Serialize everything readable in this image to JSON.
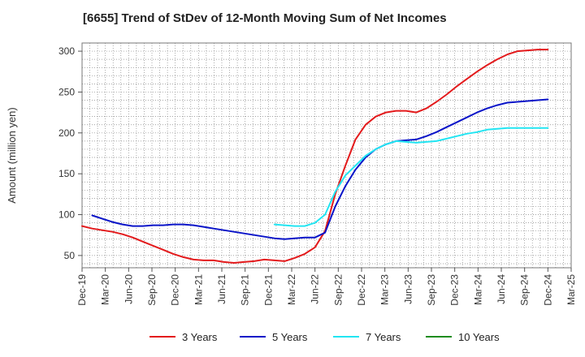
{
  "chart_data": {
    "type": "line",
    "title": "[6655]  Trend of StDev of 12-Month Moving Sum of Net Incomes",
    "ylabel": "Amount (million yen)",
    "xlabel": "",
    "ylim": [
      35,
      310
    ],
    "yticks": [
      50,
      100,
      150,
      200,
      250,
      300
    ],
    "xticks": [
      "Dec-19",
      "Mar-20",
      "Jun-20",
      "Sep-20",
      "Dec-20",
      "Mar-21",
      "Jun-21",
      "Sep-21",
      "Dec-21",
      "Mar-22",
      "Jun-22",
      "Sep-22",
      "Dec-22",
      "Mar-23",
      "Jun-23",
      "Sep-23",
      "Dec-23",
      "Mar-24",
      "Jun-24",
      "Sep-24",
      "Dec-24",
      "Mar-25"
    ],
    "grid": true,
    "legend_position": "bottom",
    "series": [
      {
        "name": "3 Years",
        "color": "#e31a1c",
        "values": [
          86,
          83,
          81,
          79,
          76,
          72,
          67,
          62,
          57,
          52,
          48,
          45,
          44,
          44,
          42,
          41,
          42,
          43,
          45,
          44,
          43,
          47,
          52,
          60,
          80,
          125,
          160,
          192,
          210,
          220,
          225,
          227,
          227,
          225,
          230,
          238,
          247,
          257,
          266,
          275,
          283,
          290,
          296,
          300,
          301,
          302,
          302
        ]
      },
      {
        "name": "5 Years",
        "color": "#0a14c8",
        "values": [
          null,
          99,
          95,
          91,
          88,
          86,
          86,
          87,
          87,
          88,
          88,
          87,
          85,
          83,
          81,
          79,
          77,
          75,
          73,
          71,
          70,
          71,
          72,
          72,
          78,
          110,
          135,
          155,
          170,
          180,
          186,
          190,
          191,
          192,
          196,
          201,
          207,
          213,
          219,
          225,
          230,
          234,
          237,
          238,
          239,
          240,
          241
        ]
      },
      {
        "name": "7 Years",
        "color": "#22e5f2",
        "values": [
          null,
          null,
          null,
          null,
          null,
          null,
          null,
          null,
          null,
          null,
          null,
          null,
          null,
          null,
          null,
          null,
          null,
          null,
          null,
          88,
          87,
          86,
          86,
          90,
          100,
          128,
          148,
          160,
          172,
          180,
          186,
          190,
          189,
          188,
          189,
          190,
          193,
          196,
          199,
          201,
          204,
          205,
          206,
          206,
          206,
          206,
          206
        ]
      },
      {
        "name": "10 Years",
        "color": "#1e8c1e",
        "values": []
      }
    ]
  }
}
